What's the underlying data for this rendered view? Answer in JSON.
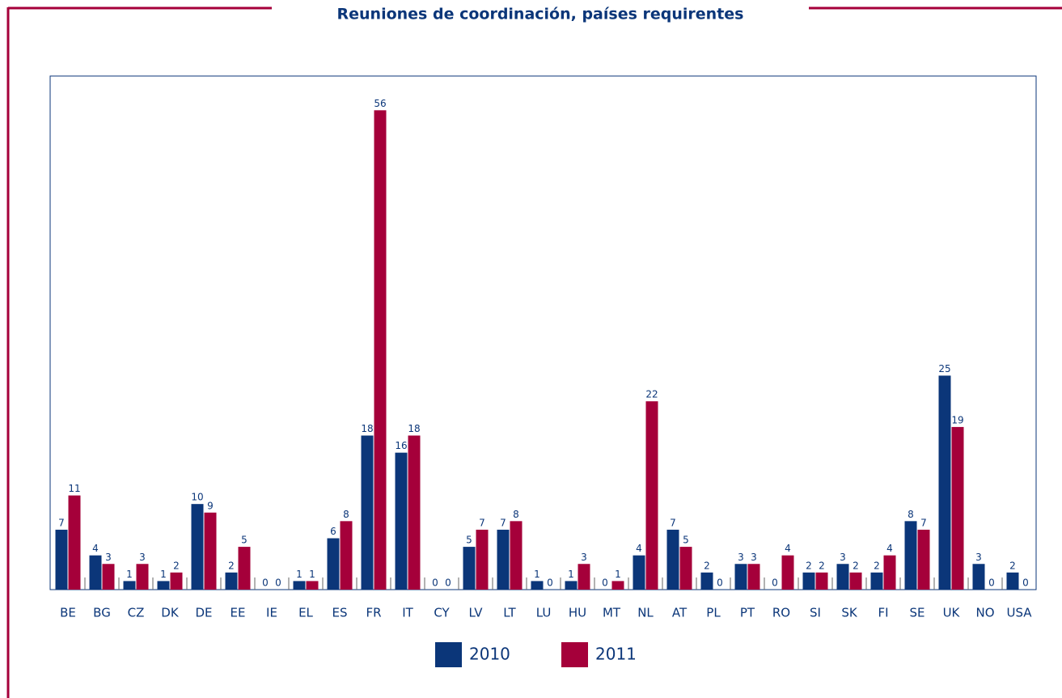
{
  "chart_data": {
    "type": "bar",
    "title": "Reuniones de coordinación, países requirentes",
    "categories": [
      "BE",
      "BG",
      "CZ",
      "DK",
      "DE",
      "EE",
      "IE",
      "EL",
      "ES",
      "FR",
      "IT",
      "CY",
      "LV",
      "LT",
      "LU",
      "HU",
      "MT",
      "NL",
      "AT",
      "PL",
      "PT",
      "RO",
      "SI",
      "SK",
      "FI",
      "SE",
      "UK",
      "NO",
      "USA"
    ],
    "series": [
      {
        "name": "2010",
        "color": "#0b3679",
        "values": [
          7,
          4,
          1,
          1,
          10,
          2,
          0,
          1,
          6,
          18,
          16,
          0,
          5,
          7,
          1,
          1,
          0,
          4,
          7,
          2,
          3,
          0,
          2,
          3,
          2,
          8,
          25,
          3,
          2
        ]
      },
      {
        "name": "2011",
        "color": "#a5003a",
        "values": [
          11,
          3,
          3,
          2,
          9,
          5,
          0,
          1,
          8,
          56,
          18,
          0,
          7,
          8,
          0,
          3,
          1,
          22,
          5,
          0,
          3,
          4,
          2,
          2,
          4,
          7,
          19,
          0,
          0
        ]
      }
    ],
    "ylim": [
      0,
      60
    ],
    "legend": "bottom"
  }
}
